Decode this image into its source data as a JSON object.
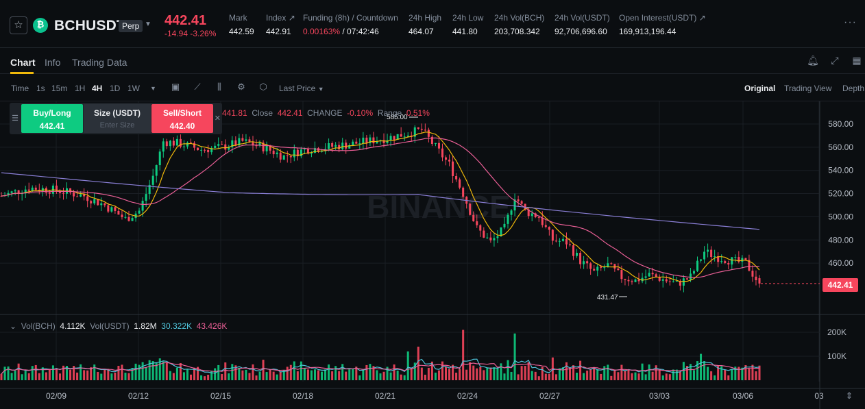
{
  "header": {
    "symbol": "BCHUSDT",
    "contract_type": "Perp",
    "last_price": "442.41",
    "change": "-14.94 -3.26%",
    "stats": [
      {
        "label": "Mark",
        "value": "442.59"
      },
      {
        "label": "Index ↗",
        "value": "442.91"
      },
      {
        "label": "Funding (8h) / Countdown",
        "value": "0.00163%",
        "value2": " / 07:42:46"
      },
      {
        "label": "24h High",
        "value": "464.07"
      },
      {
        "label": "24h Low",
        "value": "441.80"
      },
      {
        "label": "24h Vol(BCH)",
        "value": "203,708.342"
      },
      {
        "label": "24h Vol(USDT)",
        "value": "92,706,696.60"
      },
      {
        "label": "Open Interest(USDT) ↗",
        "value": "169,913,196.44"
      }
    ]
  },
  "tabs": [
    "Chart",
    "Info",
    "Trading Data"
  ],
  "toolbar": {
    "time_label": "Time",
    "intervals": [
      "1s",
      "15m",
      "1H",
      "4H",
      "1D",
      "1W"
    ],
    "active_interval": "4H",
    "price_type": "Last Price",
    "views": [
      "Original",
      "Trading View",
      "Depth"
    ],
    "active_view": "Original"
  },
  "order_panel": {
    "buy_label": "Buy/Long",
    "buy_price": "442.41",
    "size_label": "Size (USDT)",
    "size_placeholder": "Enter Size",
    "sell_label": "Sell/Short",
    "sell_price": "442.40"
  },
  "ohlc": {
    "low_val": "441.81",
    "close_label": "Close",
    "close_val": "442.41",
    "change_label": "CHANGE",
    "change_val": "-0.10%",
    "range_label": "Range",
    "range_val": "0.51%"
  },
  "volume_legend": {
    "vol_bch_label": "Vol(BCH)",
    "vol_bch": "4.112K",
    "vol_usdt_label": "Vol(USDT)",
    "vol_usdt": "1.82M",
    "ma1": "30.322K",
    "ma2": "43.426K"
  },
  "watermark": "BINANCE",
  "colors": {
    "up": "#0ecb81",
    "down": "#f6465d",
    "ma7": "#f0b90b",
    "ma25": "#ea5f96",
    "ma99": "#8a7fd6",
    "vma1": "#4fc3d9"
  },
  "chart_data": {
    "type": "candlestick",
    "interval": "4H",
    "price_axis_ticks": [
      "580.00",
      "560.00",
      "540.00",
      "520.00",
      "500.00",
      "480.00",
      "460.00"
    ],
    "volume_axis_ticks": [
      "200K",
      "100K"
    ],
    "date_ticks": [
      "02/09",
      "02/12",
      "02/15",
      "02/18",
      "02/21",
      "02/24",
      "02/27",
      "03/03",
      "03/06",
      "03"
    ],
    "high_marker": "585.00",
    "low_marker": "431.47",
    "last_price": "442.41",
    "ylim": [
      420,
      590
    ],
    "anchors": [
      [
        0,
        518
      ],
      [
        8,
        525
      ],
      [
        16,
        523
      ],
      [
        24,
        518
      ],
      [
        30,
        510
      ],
      [
        36,
        498
      ],
      [
        40,
        505
      ],
      [
        44,
        535
      ],
      [
        47,
        565
      ],
      [
        52,
        563
      ],
      [
        58,
        558
      ],
      [
        64,
        560
      ],
      [
        70,
        565
      ],
      [
        76,
        560
      ],
      [
        82,
        552
      ],
      [
        88,
        558
      ],
      [
        94,
        560
      ],
      [
        100,
        562
      ],
      [
        106,
        565
      ],
      [
        112,
        568
      ],
      [
        118,
        572
      ],
      [
        122,
        575
      ],
      [
        126,
        560
      ],
      [
        130,
        545
      ],
      [
        134,
        520
      ],
      [
        138,
        490
      ],
      [
        142,
        478
      ],
      [
        146,
        490
      ],
      [
        149,
        518
      ],
      [
        152,
        505
      ],
      [
        156,
        500
      ],
      [
        160,
        480
      ],
      [
        164,
        478
      ],
      [
        168,
        462
      ],
      [
        172,
        452
      ],
      [
        176,
        458
      ],
      [
        180,
        448
      ],
      [
        184,
        445
      ],
      [
        188,
        450
      ],
      [
        192,
        446
      ],
      [
        196,
        442
      ],
      [
        200,
        448
      ],
      [
        204,
        470
      ],
      [
        208,
        465
      ],
      [
        212,
        462
      ],
      [
        216,
        460
      ],
      [
        220,
        442
      ]
    ],
    "volume_note": "volume bars in BCH, approx range 5K-270K"
  }
}
